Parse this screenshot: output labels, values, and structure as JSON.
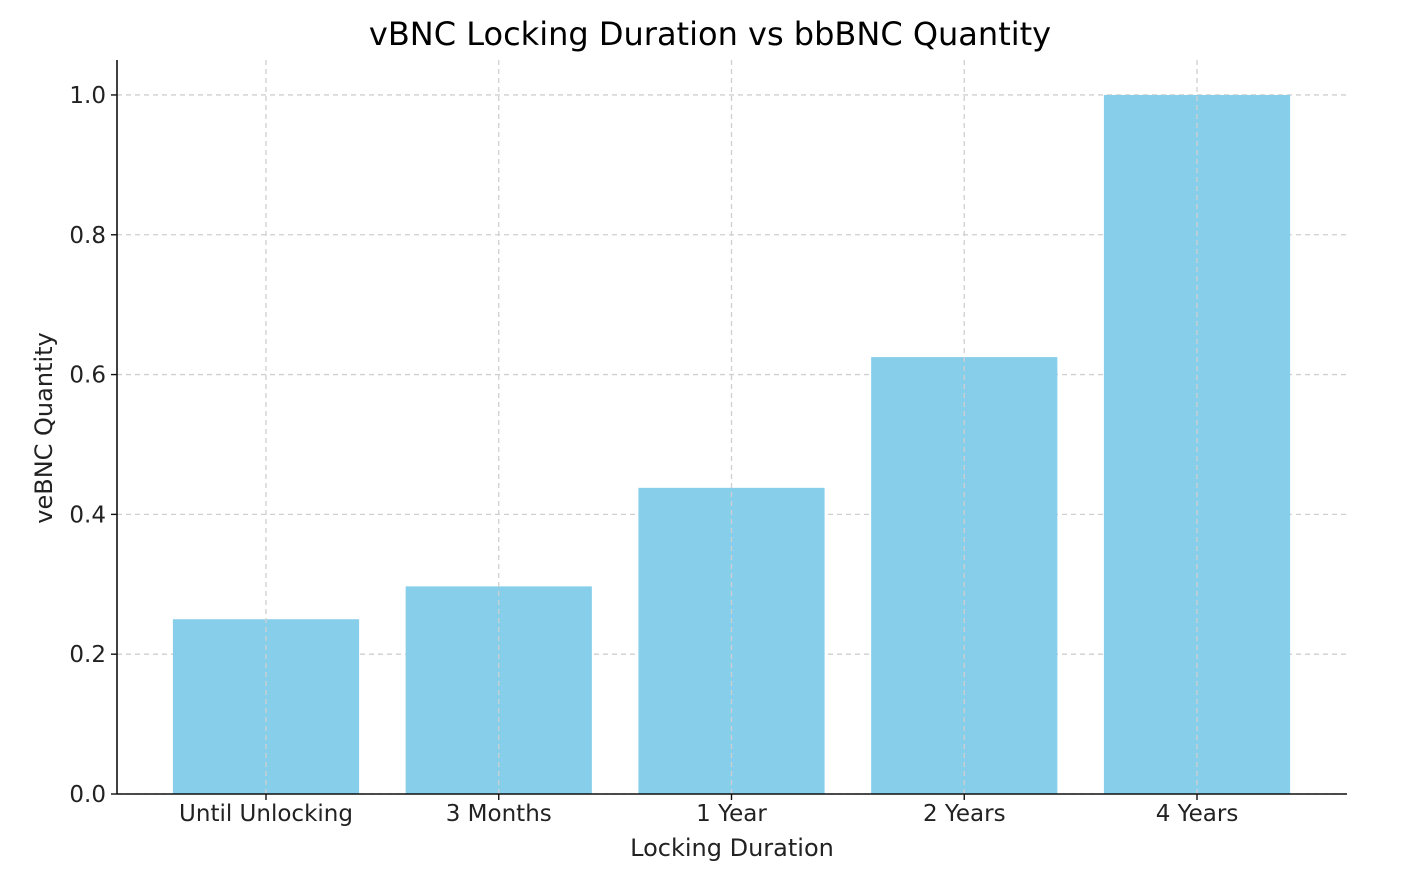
{
  "chart_data": {
    "type": "bar",
    "title": "vBNC Locking Duration vs bbBNC Quantity",
    "xlabel": "Locking Duration",
    "ylabel": "veBNC Quantity",
    "categories": [
      "Until Unlocking",
      "3 Months",
      "1 Year",
      "2 Years",
      "4 Years"
    ],
    "values": [
      0.25,
      0.297,
      0.438,
      0.625,
      1.0
    ],
    "ylim": [
      0,
      1.05
    ],
    "yticks": [
      0.0,
      0.2,
      0.4,
      0.6,
      0.8,
      1.0
    ],
    "ytick_labels": [
      "0.0",
      "0.2",
      "0.4",
      "0.6",
      "0.8",
      "1.0"
    ],
    "grid": true,
    "colors": {
      "bar": "#87ceeb"
    }
  }
}
